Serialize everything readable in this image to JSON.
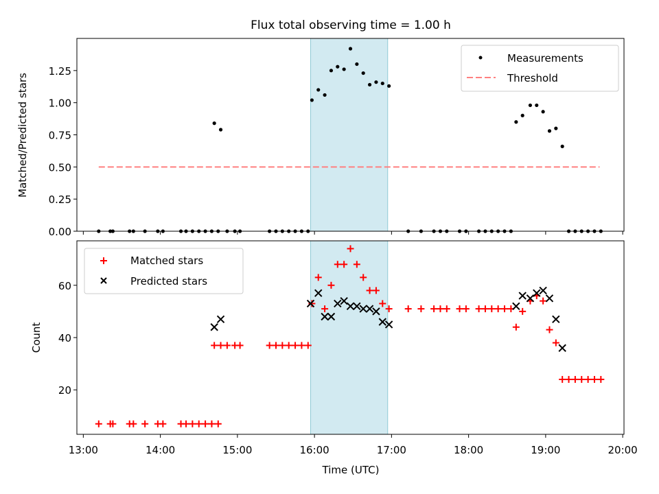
{
  "title": "Flux total observing time = 1.00 h",
  "xlabel": "Time (UTC)",
  "colors": {
    "matched": "#ff0000",
    "predicted": "#000000",
    "threshold": "#ff7f7f",
    "band": "#add8e6"
  },
  "chart_data": [
    {
      "type": "scatter",
      "title": "Flux total observing time = 1.00 h",
      "xlabel": "",
      "ylabel": "Matched/Predicted stars",
      "xlim": [
        "12:55",
        "20:01"
      ],
      "ylim": [
        0,
        1.5
      ],
      "yticks": [
        0.0,
        0.25,
        0.5,
        0.75,
        1.0,
        1.25
      ],
      "ytick_labels": [
        "0.00",
        "0.25",
        "0.50",
        "0.75",
        "1.00",
        "1.25"
      ],
      "highlight_band": [
        "15:57",
        "16:57"
      ],
      "legend": {
        "placement": "top-right",
        "entries": [
          "Measurements",
          "Threshold"
        ]
      },
      "series": [
        {
          "name": "Measurements",
          "marker": "dot",
          "x": [
            "13:12",
            "13:21",
            "13:23",
            "13:36",
            "13:39",
            "13:48",
            "13:58",
            "14:02",
            "14:16",
            "14:20",
            "14:25",
            "14:30",
            "14:35",
            "14:40",
            "14:45",
            "14:42",
            "14:47",
            "14:52",
            "14:58",
            "15:02",
            "15:25",
            "15:30",
            "15:35",
            "15:40",
            "15:45",
            "15:50",
            "15:55",
            "15:58",
            "16:03",
            "16:08",
            "16:13",
            "16:18",
            "16:23",
            "16:28",
            "16:33",
            "16:38",
            "16:43",
            "16:48",
            "16:53",
            "16:58",
            "17:13",
            "17:23",
            "17:33",
            "17:38",
            "17:43",
            "17:53",
            "17:58",
            "18:08",
            "18:13",
            "18:18",
            "18:23",
            "18:28",
            "18:33",
            "18:37",
            "18:42",
            "18:48",
            "18:53",
            "18:58",
            "19:03",
            "19:08",
            "19:13",
            "19:18",
            "19:23",
            "19:28",
            "19:33",
            "19:38",
            "19:43"
          ],
          "y": [
            0,
            0,
            0,
            0,
            0,
            0,
            0,
            0,
            0,
            0,
            0,
            0,
            0,
            0,
            0,
            0.84,
            0.79,
            0,
            0,
            0,
            0,
            0,
            0,
            0,
            0,
            0,
            0,
            1.02,
            1.1,
            1.06,
            1.25,
            1.28,
            1.26,
            1.42,
            1.3,
            1.23,
            1.14,
            1.16,
            1.15,
            1.13,
            0,
            0,
            0,
            0,
            0,
            0,
            0,
            0,
            0,
            0,
            0,
            0,
            0,
            0.85,
            0.9,
            0.98,
            0.98,
            0.93,
            0.78,
            0.8,
            0.66,
            0,
            0,
            0,
            0,
            0,
            0
          ]
        },
        {
          "name": "Threshold",
          "type": "line",
          "style": "dashed",
          "x": [
            "13:12",
            "19:42"
          ],
          "y": [
            0.5,
            0.5
          ]
        }
      ]
    },
    {
      "type": "scatter",
      "title": "",
      "xlabel": "Time (UTC)",
      "ylabel": "Count",
      "xlim": [
        "12:55",
        "20:01"
      ],
      "ylim": [
        3,
        77
      ],
      "yticks": [
        20,
        40,
        60
      ],
      "ytick_labels": [
        "20",
        "40",
        "60"
      ],
      "xticks": [
        "13:00",
        "14:00",
        "15:00",
        "16:00",
        "17:00",
        "18:00",
        "19:00",
        "20:00"
      ],
      "xtick_labels": [
        "13:00",
        "14:00",
        "15:00",
        "16:00",
        "17:00",
        "18:00",
        "19:00",
        "20:00"
      ],
      "highlight_band": [
        "15:57",
        "16:57"
      ],
      "legend": {
        "placement": "top-left",
        "entries": [
          "Matched stars",
          "Predicted stars"
        ]
      },
      "series": [
        {
          "name": "Matched stars",
          "marker": "plus",
          "x": [
            "13:12",
            "13:21",
            "13:23",
            "13:36",
            "13:39",
            "13:48",
            "13:58",
            "14:02",
            "14:16",
            "14:20",
            "14:25",
            "14:30",
            "14:35",
            "14:40",
            "14:45",
            "14:42",
            "14:47",
            "14:52",
            "14:58",
            "15:02",
            "15:25",
            "15:30",
            "15:35",
            "15:40",
            "15:45",
            "15:50",
            "15:55",
            "15:58",
            "16:03",
            "16:08",
            "16:13",
            "16:18",
            "16:23",
            "16:28",
            "16:33",
            "16:38",
            "16:43",
            "16:48",
            "16:53",
            "16:58",
            "17:13",
            "17:23",
            "17:33",
            "17:38",
            "17:43",
            "17:53",
            "17:58",
            "18:08",
            "18:13",
            "18:18",
            "18:23",
            "18:28",
            "18:33",
            "18:37",
            "18:42",
            "18:48",
            "18:53",
            "18:58",
            "19:03",
            "19:08",
            "19:13",
            "19:18",
            "19:23",
            "19:28",
            "19:33",
            "19:38",
            "19:43"
          ],
          "y": [
            7,
            7,
            7,
            7,
            7,
            7,
            7,
            7,
            7,
            7,
            7,
            7,
            7,
            7,
            7,
            37,
            37,
            37,
            37,
            37,
            37,
            37,
            37,
            37,
            37,
            37,
            37,
            53,
            63,
            51,
            60,
            68,
            68,
            74,
            68,
            63,
            58,
            58,
            53,
            51,
            51,
            51,
            51,
            51,
            51,
            51,
            51,
            51,
            51,
            51,
            51,
            51,
            51,
            44,
            50,
            54,
            56,
            54,
            43,
            38,
            24,
            24,
            24,
            24,
            24,
            24,
            24
          ]
        },
        {
          "name": "Predicted stars",
          "marker": "x",
          "x": [
            "14:42",
            "14:47",
            "15:57",
            "16:03",
            "16:08",
            "16:13",
            "16:18",
            "16:23",
            "16:28",
            "16:33",
            "16:38",
            "16:43",
            "16:48",
            "16:53",
            "16:58",
            "18:37",
            "18:42",
            "18:48",
            "18:53",
            "18:58",
            "19:03",
            "19:08",
            "19:13"
          ],
          "y": [
            44,
            47,
            53,
            57,
            48,
            48,
            53,
            54,
            52,
            52,
            51,
            51,
            50,
            46,
            45,
            52,
            56,
            55,
            57,
            58,
            55,
            47,
            36
          ]
        }
      ]
    }
  ]
}
